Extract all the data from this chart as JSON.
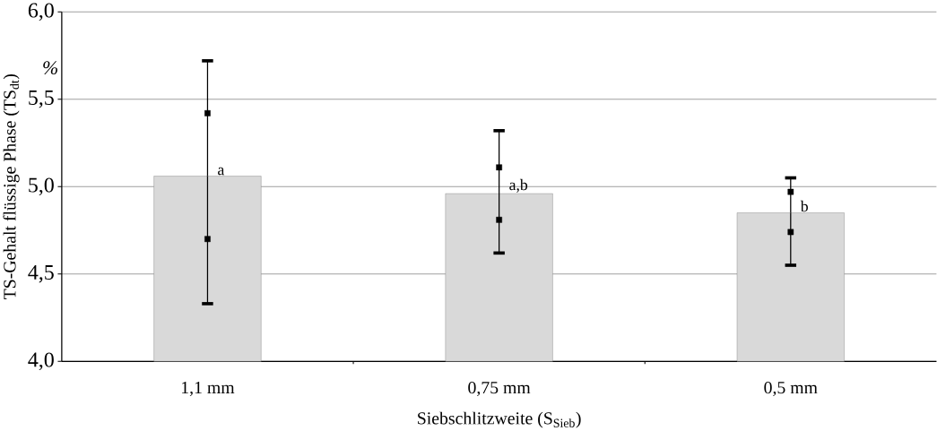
{
  "chart_data": {
    "type": "bar",
    "xlabel": "Siebschlitzweite (S$_{Sieb}$)",
    "ylabel": "TS-Gehalt flüssige Phase (TS$_{dt}$)",
    "categories": [
      "1,1 mm",
      "0,75 mm",
      "0,5 mm"
    ],
    "series": [
      {
        "color": "#d9d9d9",
        "values": [
          5.06,
          4.96,
          4.85
        ],
        "errors": [
          [
            4.33,
            5.72
          ],
          [
            4.62,
            5.32
          ],
          [
            4.55,
            5.05
          ]
        ]
      },
      {
        "type": "scatter",
        "color": "#000000",
        "marker": "square",
        "x": [
          "1,1 mm",
          "0,75 mm",
          "0,5 mm"
        ],
        "values": [
          5.42,
          5.11,
          4.97
        ]
      },
      {
        "type": "scatter",
        "color": "#000000",
        "marker": "square",
        "x": [
          "1,1 mm",
          "0,75 mm",
          "0,5 mm"
        ],
        "values": [
          4.7,
          4.81,
          4.74
        ]
      }
    ],
    "ylim": [
      4,
      6
    ],
    "yticks": [
      {
        "value": 4,
        "label": "4,0"
      },
      {
        "value": 4.5,
        "label": "4,5"
      },
      {
        "value": 5,
        "label": "5,0"
      },
      {
        "value": 5.5,
        "label": "5,5"
      },
      {
        "value": 6,
        "label": "6,0"
      }
    ],
    "grid": "y",
    "annotations": [
      {
        "text": "a",
        "x": "1,1 mm",
        "y": 5.06
      },
      {
        "text": "a,b",
        "x": "0,75 mm",
        "y": 4.96
      },
      {
        "text": "b",
        "x": "0,5 mm",
        "y": 4.85
      },
      "%"
    ]
  }
}
